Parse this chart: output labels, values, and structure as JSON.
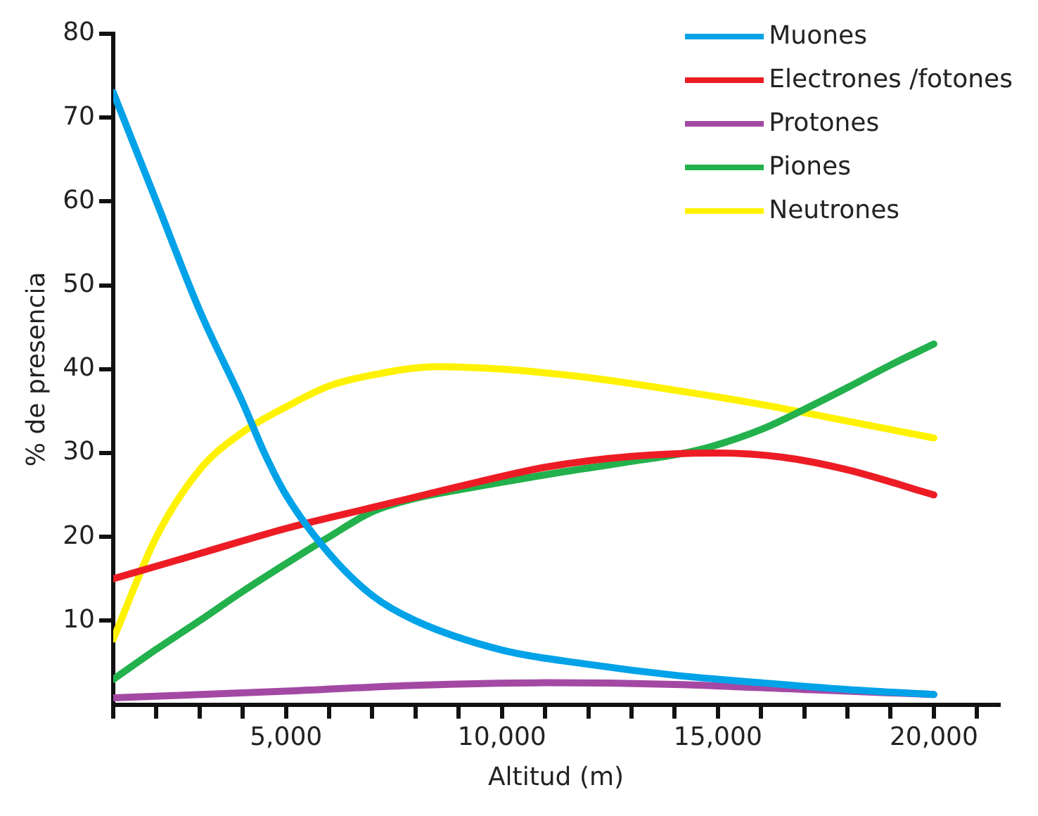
{
  "chart_data": {
    "type": "line",
    "xlabel": "Altitud (m)",
    "ylabel": "% de presencia",
    "xlim": [
      1000,
      21500
    ],
    "ylim": [
      0,
      80
    ],
    "xticks": [
      {
        "value": 1000,
        "label": null
      },
      {
        "value": 2000,
        "label": null
      },
      {
        "value": 3000,
        "label": null
      },
      {
        "value": 4000,
        "label": null
      },
      {
        "value": 5000,
        "label": "5,000"
      },
      {
        "value": 6000,
        "label": null
      },
      {
        "value": 7000,
        "label": null
      },
      {
        "value": 8000,
        "label": null
      },
      {
        "value": 9000,
        "label": null
      },
      {
        "value": 10000,
        "label": "10,000"
      },
      {
        "value": 11000,
        "label": null
      },
      {
        "value": 12000,
        "label": null
      },
      {
        "value": 13000,
        "label": null
      },
      {
        "value": 14000,
        "label": null
      },
      {
        "value": 15000,
        "label": "15,000"
      },
      {
        "value": 16000,
        "label": null
      },
      {
        "value": 17000,
        "label": null
      },
      {
        "value": 18000,
        "label": null
      },
      {
        "value": 19000,
        "label": null
      },
      {
        "value": 20000,
        "label": "20,000"
      },
      {
        "value": 21000,
        "label": null
      }
    ],
    "yticks": [
      10,
      20,
      30,
      40,
      50,
      60,
      70,
      80
    ],
    "legend": "top right",
    "grid": false,
    "marker": "none",
    "line_style": "solid",
    "series": [
      {
        "name": "Muones",
        "color": "#00a2e8",
        "x": [
          1000,
          2000,
          3000,
          4000,
          4500,
          5000,
          6000,
          7000,
          8000,
          10000,
          12000,
          14000,
          16000,
          18000,
          20000
        ],
        "values": [
          73,
          60,
          47,
          36,
          30,
          25,
          18,
          13,
          10,
          6.5,
          4.8,
          3.5,
          2.6,
          1.8,
          1.2
        ]
      },
      {
        "name": "Electrones /fotones",
        "color": "#ed1c24",
        "x": [
          1000,
          3000,
          5000,
          7000,
          9000,
          11000,
          13000,
          15000,
          16500,
          18000,
          20000
        ],
        "values": [
          15,
          18,
          21,
          23.5,
          26,
          28.3,
          29.6,
          30,
          29.5,
          28,
          25
        ]
      },
      {
        "name": "Protones",
        "color": "#a349a4",
        "x": [
          1000,
          5000,
          8000,
          11000,
          14000,
          17000,
          20000
        ],
        "values": [
          0.8,
          1.6,
          2.3,
          2.6,
          2.4,
          1.8,
          1.2
        ]
      },
      {
        "name": "Piones",
        "color": "#22b14c",
        "x": [
          1000,
          2000,
          3000,
          4000,
          5000,
          6000,
          7000,
          8000,
          9000,
          11000,
          13000,
          14500,
          16000,
          17000,
          18000,
          19000,
          20000
        ],
        "values": [
          3,
          6.6,
          10,
          13.5,
          16.8,
          20,
          23,
          24.6,
          25.6,
          27.4,
          29,
          30.3,
          32.8,
          35.2,
          37.8,
          40.5,
          43
        ]
      },
      {
        "name": "Neutrones",
        "color": "#fff200",
        "x": [
          1000,
          2000,
          3000,
          4000,
          5000,
          6000,
          7000,
          8500,
          10000,
          12000,
          14000,
          16000,
          18000,
          20000
        ],
        "values": [
          7.8,
          20,
          28,
          32.5,
          35.5,
          38,
          39.3,
          40.3,
          40,
          39,
          37.5,
          35.8,
          33.8,
          31.8
        ]
      }
    ]
  }
}
